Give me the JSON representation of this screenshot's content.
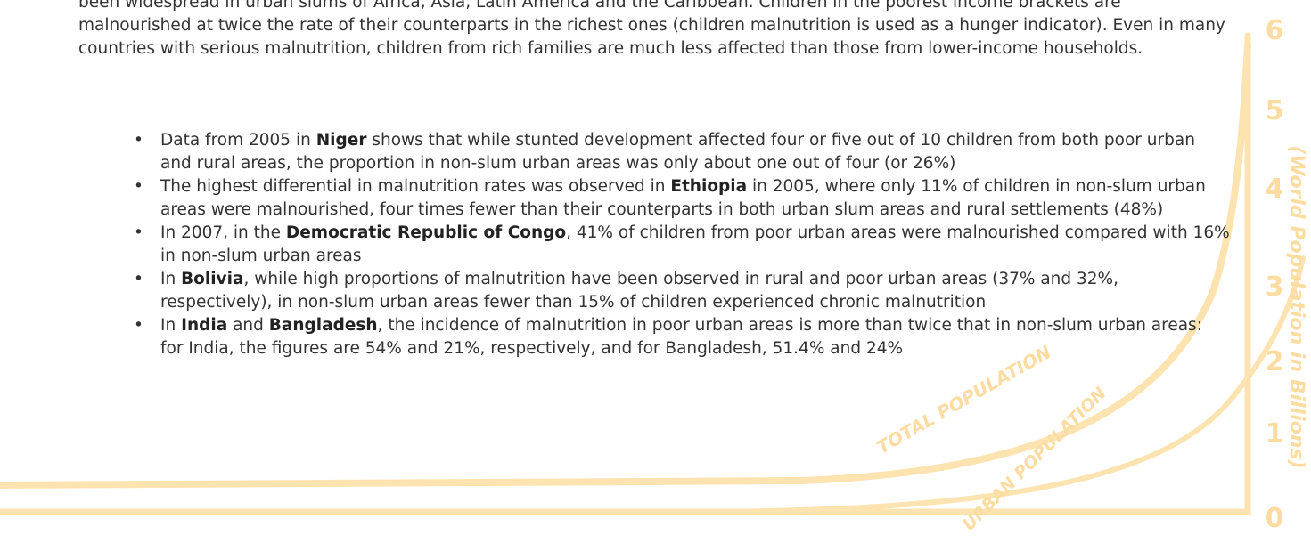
{
  "paragraph": "been widespread in urban slums of Africa, Asia, Latin America and the Caribbean. Children in the poorest income brackets are malnourished at twice the rate of their counterparts in the richest ones (children malnutrition is used as a hunger indicator). Even in many countries with serious malnutrition, children from rich families are much less affected than those from lower-income households.",
  "bullets": [
    [
      {
        "text": "Data from 2005 in "
      },
      {
        "text": "Niger",
        "bold": true
      },
      {
        "text": " shows that while stunted development affected four or five out of 10 children from both poor urban and rural areas, the proportion in non-slum urban areas was only about one out of four (or 26%)"
      }
    ],
    [
      {
        "text": "The highest differential in malnutrition rates was observed in "
      },
      {
        "text": "Ethiopia",
        "bold": true
      },
      {
        "text": " in 2005, where only 11% of children in non-slum urban areas were malnourished, four times fewer than their counterparts in both urban slum areas and rural settlements (48%)"
      }
    ],
    [
      {
        "text": "In 2007, in the "
      },
      {
        "text": "Democratic Republic of Congo",
        "bold": true
      },
      {
        "text": ", 41% of children from poor urban areas were malnourished compared with 16% in non-slum urban areas"
      }
    ],
    [
      {
        "text": "In "
      },
      {
        "text": "Bolivia",
        "bold": true
      },
      {
        "text": ", while high proportions of malnutrition have been observed in rural and poor urban areas (37% and 32%, respectively), in non-slum urban areas fewer than 15% of children experienced chronic malnutrition"
      }
    ],
    [
      {
        "text": "In "
      },
      {
        "text": "India",
        "bold": true
      },
      {
        "text": " and "
      },
      {
        "text": "Bangladesh",
        "bold": true
      },
      {
        "text": ", the incidence of malnutrition in poor urban areas is more than twice that in non-slum urban areas: for India, the figures are 54% and 21%, respectively, and for Bangladesh, 51.4% and 24%"
      }
    ]
  ],
  "background": {
    "axis_numbers": [
      "6",
      "5",
      "4",
      "3",
      "2",
      "1",
      "0"
    ],
    "axis_label": "(World Population in Billions)",
    "total_label": "TOTAL POPULATION",
    "urban_label": "URBAN POPULATION"
  }
}
